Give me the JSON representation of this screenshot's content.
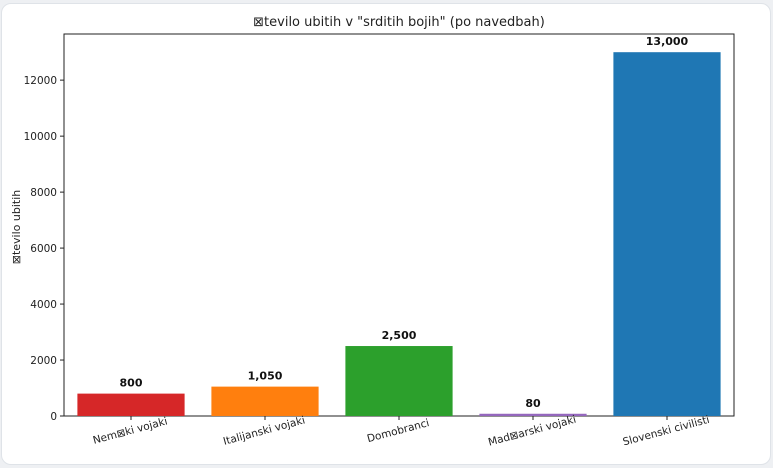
{
  "chart_data": {
    "type": "bar",
    "title": "⊠tevilo ubitih v \"srditih bojih\" (po navedbah)",
    "xlabel": "",
    "ylabel": "⊠tevilo ubitih",
    "categories": [
      "Nem⊠ki vojaki",
      "Italijanski vojaki",
      "Domobranci",
      "Mad⊠arski vojaki",
      "Slovenski civilisti"
    ],
    "values": [
      800,
      1050,
      2500,
      80,
      13000
    ],
    "data_labels": [
      "800",
      "1,050",
      "2,500",
      "80",
      "13,000"
    ],
    "colors": [
      "#d62728",
      "#ff7f0e",
      "#2ca02c",
      "#9467bd",
      "#1f77b4"
    ],
    "ylim": [
      0,
      13650
    ],
    "yticks": [
      0,
      2000,
      4000,
      6000,
      8000,
      10000,
      12000
    ],
    "grid": false,
    "legend": "none"
  }
}
